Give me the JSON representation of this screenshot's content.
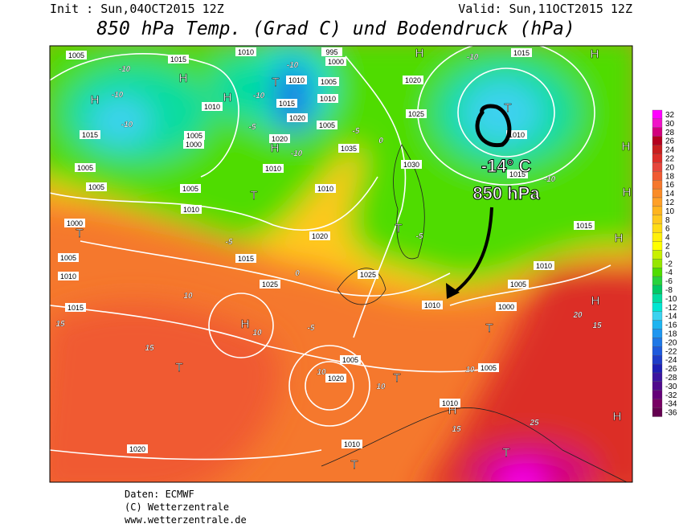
{
  "header": {
    "init": "Init : Sun,04OCT2015 12Z",
    "valid": "Valid: Sun,11OCT2015 12Z",
    "title": "850 hPa Temp. (Grad C) und Bodendruck (hPa)"
  },
  "annotation": {
    "temp": "-14° C",
    "level": "850 hPa"
  },
  "footer": {
    "source": "Daten: ECMWF",
    "copyright": "(C) Wetterzentrale",
    "url": "www.wetterzentrale.de"
  },
  "colorbar": {
    "ticks": [
      32,
      30,
      28,
      26,
      24,
      22,
      20,
      18,
      16,
      14,
      12,
      10,
      8,
      6,
      4,
      2,
      0,
      -2,
      -4,
      -6,
      -8,
      -10,
      -12,
      -14,
      -16,
      -18,
      -20,
      -22,
      -24,
      -26,
      -28,
      -30,
      -32,
      -34,
      -36
    ],
    "colors": [
      "#ff00ff",
      "#f014c8",
      "#d2007d",
      "#b4001e",
      "#c81e1e",
      "#dc2d28",
      "#e6463c",
      "#f05a32",
      "#f5782d",
      "#fa8c28",
      "#ffa028",
      "#ffb41e",
      "#ffc81e",
      "#ffdc14",
      "#fff00a",
      "#ffff00",
      "#c8f000",
      "#96e600",
      "#50dc00",
      "#28d23c",
      "#00c864",
      "#00dca0",
      "#00e6d2",
      "#3cd2f0",
      "#1eb4f0",
      "#1e96f0",
      "#1e78e6",
      "#1e5adc",
      "#1e3cc8",
      "#1e1eb4",
      "#3c14a0",
      "#500a8c",
      "#640078",
      "#780064",
      "#640050"
    ]
  },
  "map_labels": [
    "1005",
    "1015",
    "1010",
    "995",
    "1000",
    "-10",
    "-10",
    "H",
    "H",
    "-10",
    "1010",
    "1005",
    "T",
    "-10",
    "1010",
    "H",
    "1015",
    "1010",
    "-10",
    "1020",
    "1005",
    "1015",
    "1005",
    "-5",
    "-5",
    "1000",
    "1020",
    "H",
    "-10",
    "1035",
    "1030",
    "1005",
    "1010",
    "1005",
    "1005",
    "T",
    "1010",
    "1010",
    "1000",
    "T",
    "-5",
    "1020",
    "1015",
    "1005",
    "1010",
    "1025",
    "0",
    "1025",
    "10",
    "1015",
    "15",
    "H",
    "10",
    "-5",
    "15",
    "T",
    "1005",
    "10",
    "1020",
    "T",
    "10",
    "H",
    "1010",
    "15",
    "1020",
    "1010",
    "T",
    "T",
    "25",
    "H",
    "H",
    "20",
    "15",
    "1000",
    "1005",
    "1010",
    "1015",
    "T",
    "1010",
    "10",
    "1005",
    "H",
    "-10",
    "1015",
    "H",
    "1020",
    "T",
    "1010",
    "1025",
    "0",
    "1015",
    "-10",
    "T",
    "-5",
    "H",
    "H",
    "H"
  ]
}
